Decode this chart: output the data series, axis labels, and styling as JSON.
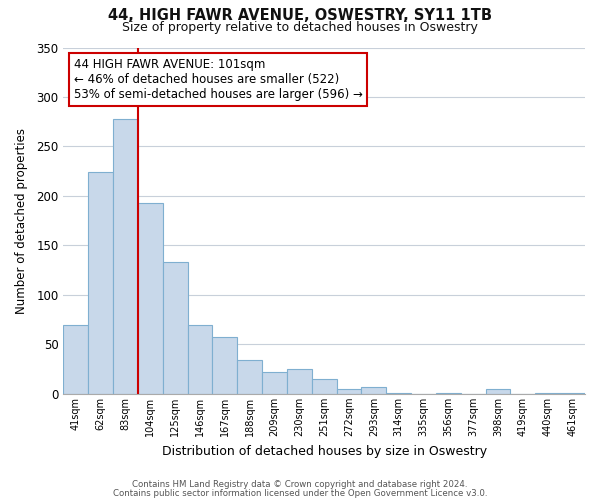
{
  "title": "44, HIGH FAWR AVENUE, OSWESTRY, SY11 1TB",
  "subtitle": "Size of property relative to detached houses in Oswestry",
  "xlabel": "Distribution of detached houses by size in Oswestry",
  "ylabel": "Number of detached properties",
  "bar_labels": [
    "41sqm",
    "62sqm",
    "83sqm",
    "104sqm",
    "125sqm",
    "146sqm",
    "167sqm",
    "188sqm",
    "209sqm",
    "230sqm",
    "251sqm",
    "272sqm",
    "293sqm",
    "314sqm",
    "335sqm",
    "356sqm",
    "377sqm",
    "398sqm",
    "419sqm",
    "440sqm",
    "461sqm"
  ],
  "bar_values": [
    70,
    224,
    278,
    193,
    133,
    70,
    57,
    34,
    22,
    25,
    15,
    5,
    7,
    1,
    0,
    1,
    0,
    5,
    0,
    1,
    1
  ],
  "bar_color": "#c8d8ea",
  "bar_edge_color": "#7fafd0",
  "vline_x_idx": 2.5,
  "vline_color": "#cc0000",
  "ylim": [
    0,
    350
  ],
  "yticks": [
    0,
    50,
    100,
    150,
    200,
    250,
    300,
    350
  ],
  "annotation_title": "44 HIGH FAWR AVENUE: 101sqm",
  "annotation_line1": "← 46% of detached houses are smaller (522)",
  "annotation_line2": "53% of semi-detached houses are larger (596) →",
  "footer_line1": "Contains HM Land Registry data © Crown copyright and database right 2024.",
  "footer_line2": "Contains public sector information licensed under the Open Government Licence v3.0.",
  "background_color": "#ffffff",
  "grid_color": "#c8d0da"
}
